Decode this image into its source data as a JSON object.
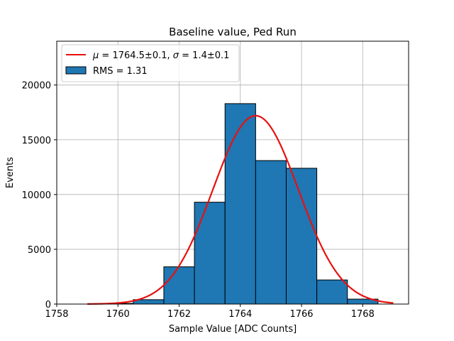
{
  "chart_data": {
    "type": "bar",
    "title": "Baseline value, Ped Run",
    "xlabel": "Sample Value [ADC Counts]",
    "ylabel": "Events",
    "xlim": [
      1758,
      1769.5
    ],
    "ylim": [
      0,
      24000
    ],
    "grid": true,
    "legend_placement": "upper-left",
    "x_ticks": [
      1758,
      1760,
      1762,
      1764,
      1766,
      1768
    ],
    "y_ticks": [
      0,
      5000,
      10000,
      15000,
      20000
    ],
    "histogram": {
      "name": "RMS = 1.31",
      "color": "#1f77b4",
      "bin_edges": [
        1758.5,
        1759.5,
        1760.5,
        1761.5,
        1762.5,
        1763.5,
        1764.5,
        1765.5,
        1766.5,
        1767.5,
        1768.5
      ],
      "values": [
        0,
        60,
        400,
        3400,
        9300,
        18300,
        13100,
        12400,
        2200,
        450
      ]
    },
    "fit": {
      "name": "μ = 1764.5±0.1, σ = 1.4±0.1",
      "color": "#e8110f",
      "mu": 1764.5,
      "sigma": 1.4,
      "amplitude": 17200,
      "x_range": [
        1759,
        1769
      ]
    }
  },
  "legend": {
    "fit_mu_symbol": "μ",
    "fit_mu_text": " = 1764.5±0.1, ",
    "fit_sigma_symbol": "σ",
    "fit_sigma_text": " = 1.4±0.1",
    "hist_label": "RMS = 1.31"
  }
}
